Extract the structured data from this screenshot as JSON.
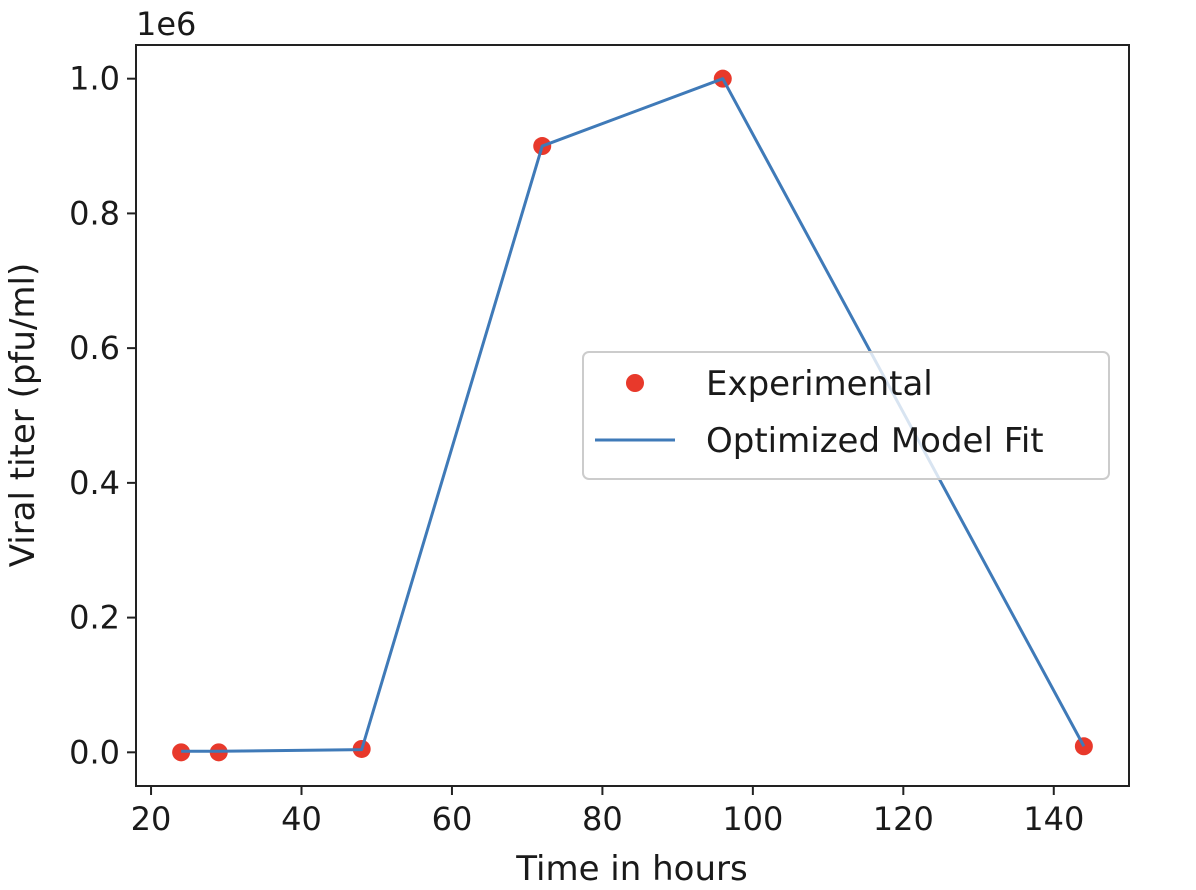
{
  "chart_data": {
    "type": "line",
    "title": "",
    "xlabel": "Time in hours",
    "ylabel": "Viral titer (pfu/ml)",
    "y_offset_label": "1e6",
    "xlim": [
      18,
      150
    ],
    "ylim": [
      -0.05,
      1.05
    ],
    "x_ticks": [
      20,
      40,
      60,
      80,
      100,
      120,
      140
    ],
    "x_tick_labels": [
      "20",
      "40",
      "60",
      "80",
      "100",
      "120",
      "140"
    ],
    "y_ticks": [
      0.0,
      0.2,
      0.4,
      0.6,
      0.8,
      1.0
    ],
    "y_tick_labels": [
      "0.0",
      "0.2",
      "0.4",
      "0.6",
      "0.8",
      "1.0"
    ],
    "grid": false,
    "legend_position": "center-right",
    "series": [
      {
        "name": "Experimental",
        "kind": "scatter",
        "color": "#e8392b",
        "x": [
          24,
          29,
          48,
          72,
          96,
          144
        ],
        "y": [
          0.0,
          0.0,
          0.005,
          0.9,
          1.0,
          0.009
        ]
      },
      {
        "name": "Optimized Model Fit",
        "kind": "line",
        "color": "#3f7ab8",
        "x": [
          24,
          29,
          48,
          72,
          96,
          144
        ],
        "y": [
          0.0015,
          0.0015,
          0.004,
          0.9,
          1.0,
          0.009
        ]
      }
    ]
  }
}
